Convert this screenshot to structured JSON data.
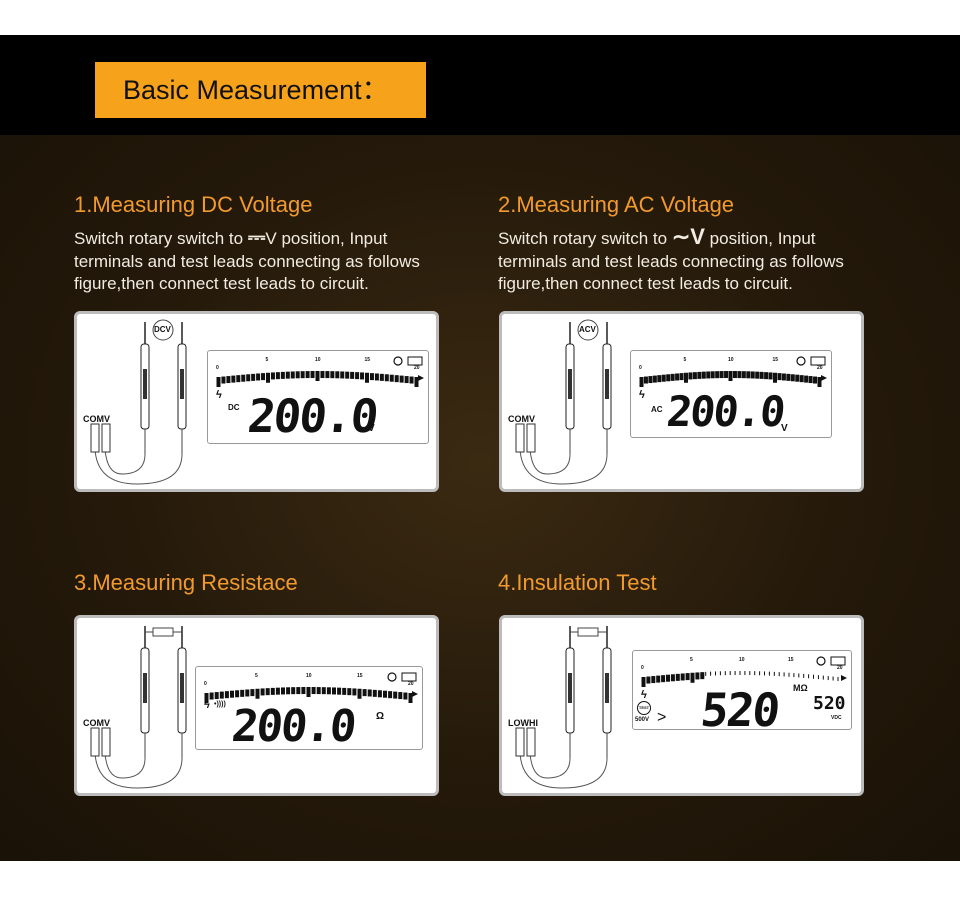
{
  "title": "Basic Measurement：",
  "sections": [
    {
      "heading": "1.Measuring DC Voltage",
      "desc_pre": "Switch rotary switch to ",
      "symbol": "⎓",
      "desc_post": "V position, Input terminals and test leads connecting as follows figure,then connect test leads to circuit.",
      "badge": "DCV",
      "terminals": [
        "COM",
        "V"
      ],
      "mode": "DC",
      "reading": "200.0",
      "unit": "V"
    },
    {
      "heading": "2.Measuring AC Voltage",
      "desc_pre": "Switch rotary switch to ",
      "symbol": "∼V",
      "desc_post": " position, Input terminals and test leads connecting as follows figure,then connect test leads to circuit.",
      "badge": "ACV",
      "terminals": [
        "COM",
        "V"
      ],
      "mode": "AC",
      "reading": "200.0",
      "unit": "V"
    },
    {
      "heading": "3.Measuring Resistace",
      "terminals": [
        "COM",
        "V"
      ],
      "mode": "•))))",
      "reading": "200.0",
      "unit": "Ω"
    },
    {
      "heading": "4.Insulation Test",
      "terminals": [
        "LOW",
        "HI"
      ],
      "mode": "TEST",
      "mode2": "500V",
      "arrow": ">",
      "reading": "520",
      "unit": "MΩ",
      "sub_reading": "520",
      "sub_unit": "VDC"
    }
  ],
  "scale_labels": [
    "0",
    "5",
    "10",
    "15",
    "20"
  ],
  "bar_fill": [
    1,
    1,
    1,
    0.3
  ]
}
